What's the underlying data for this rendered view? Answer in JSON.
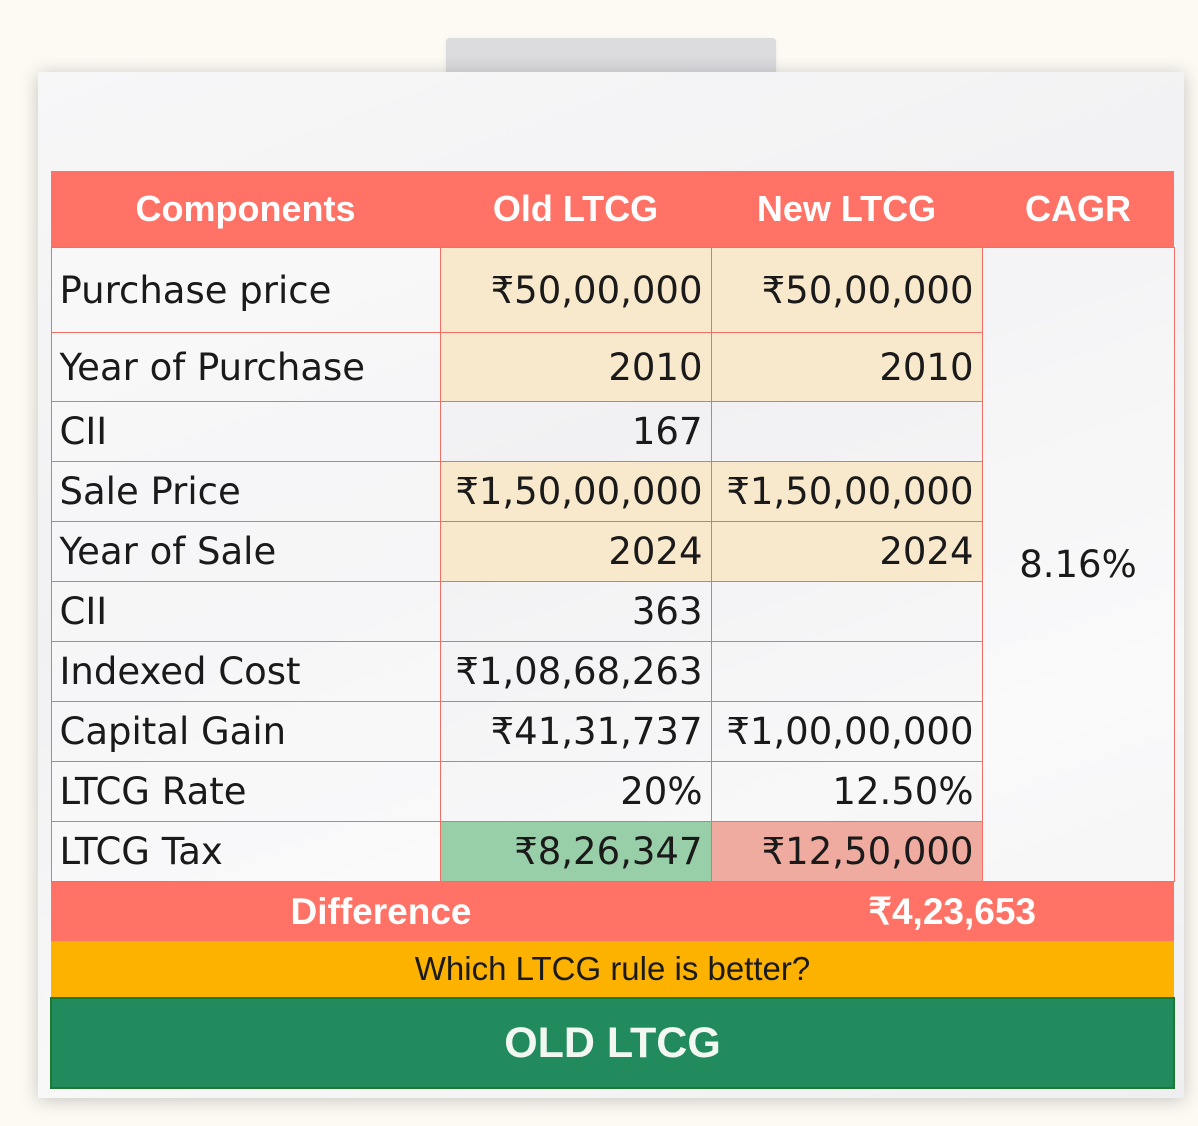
{
  "headers": {
    "components": "Components",
    "old": "Old LTCG",
    "new": "New LTCG",
    "cagr": "CAGR"
  },
  "rows": [
    {
      "label": "Purchase price",
      "old": "₹50,00,000",
      "new": "₹50,00,000"
    },
    {
      "label": "Year of Purchase",
      "old": "2010",
      "new": "2010"
    },
    {
      "label": "CII",
      "old": "167",
      "new": ""
    },
    {
      "label": "Sale Price",
      "old": "₹1,50,00,000",
      "new": "₹1,50,00,000"
    },
    {
      "label": "Year of Sale",
      "old": "2024",
      "new": "2024"
    },
    {
      "label": "CII",
      "old": "363",
      "new": ""
    },
    {
      "label": "Indexed Cost",
      "old": "₹1,08,68,263",
      "new": ""
    },
    {
      "label": "Capital Gain",
      "old": "₹41,31,737",
      "new": "₹1,00,00,000"
    },
    {
      "label": "LTCG Rate",
      "old": "20%",
      "new": "12.50%"
    },
    {
      "label": "LTCG Tax",
      "old": "₹8,26,347",
      "new": "₹12,50,000"
    }
  ],
  "cagr_value": "8.16%",
  "difference": {
    "label": "Difference",
    "value": "₹4,23,653"
  },
  "question": "Which LTCG rule is better?",
  "answer": "OLD LTCG",
  "colors": {
    "header": "#ff7265",
    "question": "#fdb200",
    "answer": "#218b5e",
    "old_tax_highlight": "#98cfa9",
    "new_tax_highlight": "#f0aba0",
    "input_cells": "#fae8c8"
  }
}
